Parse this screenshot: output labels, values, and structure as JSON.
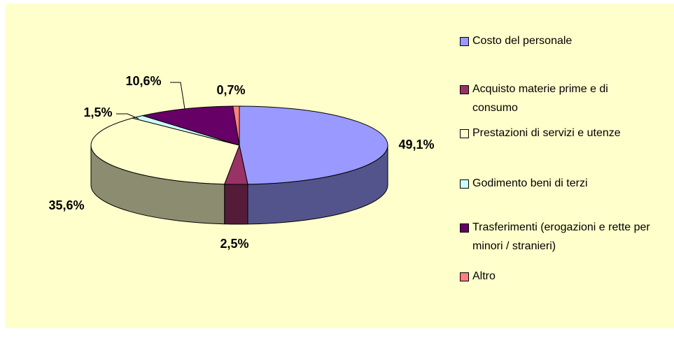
{
  "chart_data": {
    "type": "pie",
    "categories": [
      "Costo del personale",
      "Acquisto materie prime e di consumo",
      "Prestazioni di servizi e utenze",
      "Godimento beni di terzi",
      "Trasferimenti (erogazioni e rette per minori / stranieri)",
      "Altro"
    ],
    "values": [
      49.1,
      2.5,
      35.6,
      1.5,
      10.6,
      0.7
    ],
    "value_labels": [
      "49,1%",
      "2,5%",
      "35,6%",
      "1,5%",
      "10,6%",
      "0,7%"
    ],
    "colors": [
      "#9999ff",
      "#993366",
      "#ffffcc",
      "#ccffff",
      "#660066",
      "#ff8080"
    ],
    "legend": "right"
  }
}
